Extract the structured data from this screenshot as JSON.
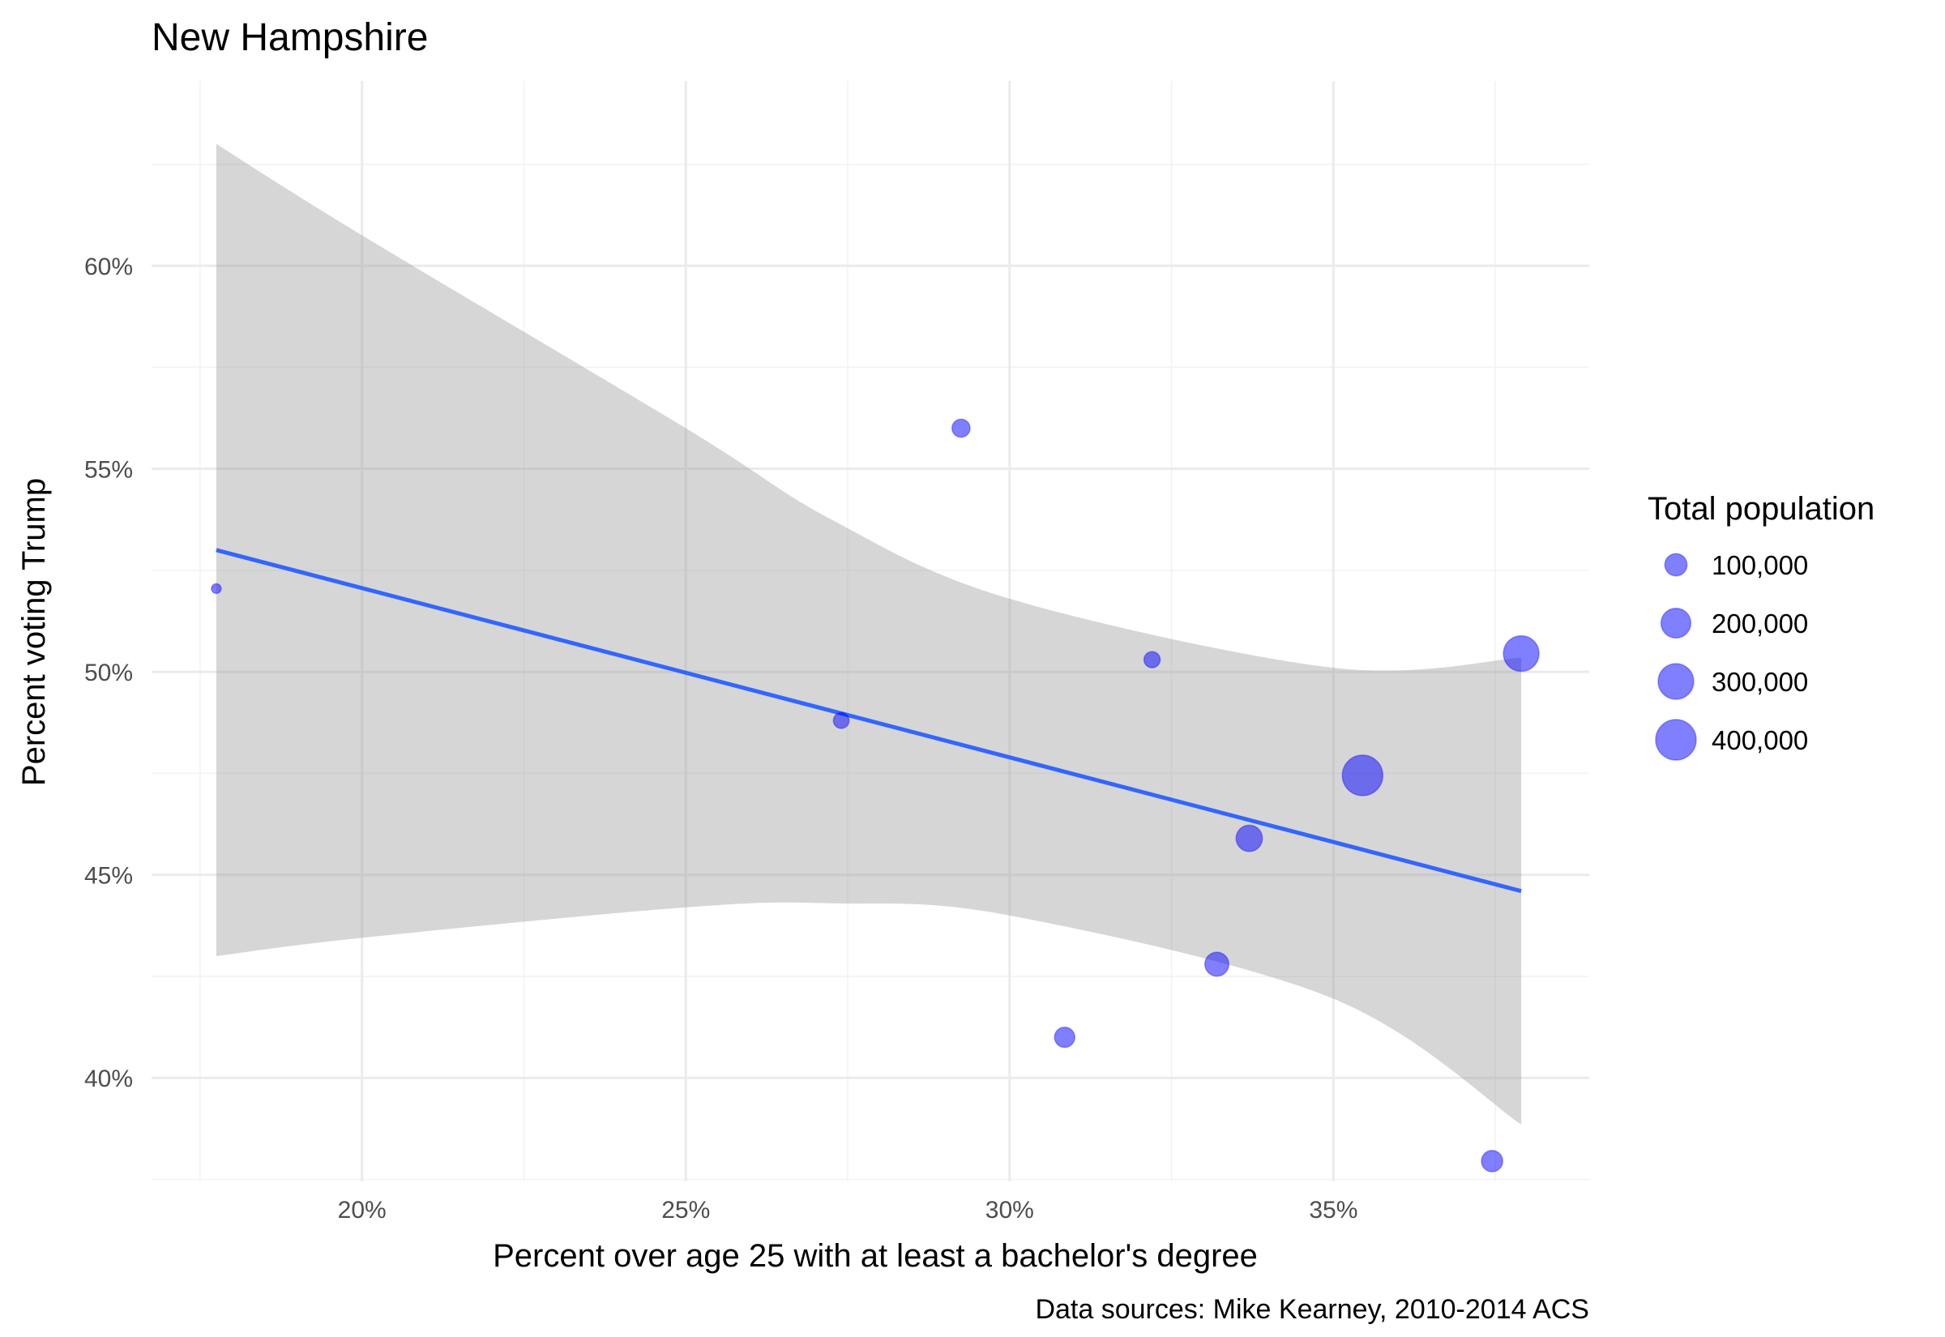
{
  "chart_data": {
    "type": "scatter",
    "title": "New Hampshire",
    "xlabel": "Percent over age 25 with at least a bachelor's degree",
    "ylabel": "Percent voting Trump",
    "caption": "Data sources: Mike Kearney, 2010-2014 ACS",
    "xlim": [
      0.1675,
      0.3895
    ],
    "ylim": [
      0.3745,
      0.6455
    ],
    "x_ticks": [
      0.2,
      0.25,
      0.3,
      0.35
    ],
    "x_tick_labels": [
      "20%",
      "25%",
      "30%",
      "35%"
    ],
    "y_ticks": [
      0.4,
      0.45,
      0.5,
      0.55,
      0.6
    ],
    "y_tick_labels": [
      "40%",
      "45%",
      "50%",
      "55%",
      "60%"
    ],
    "grid": true,
    "point_color": "#0000ff",
    "point_alpha": 0.5,
    "points": [
      {
        "x": 0.1775,
        "y": 0.5205,
        "size": 10000
      },
      {
        "x": 0.274,
        "y": 0.488,
        "size": 42000
      },
      {
        "x": 0.2925,
        "y": 0.56,
        "size": 60000
      },
      {
        "x": 0.3085,
        "y": 0.41,
        "size": 80000
      },
      {
        "x": 0.322,
        "y": 0.503,
        "size": 45000
      },
      {
        "x": 0.332,
        "y": 0.428,
        "size": 120000
      },
      {
        "x": 0.337,
        "y": 0.459,
        "size": 150000
      },
      {
        "x": 0.3545,
        "y": 0.4745,
        "size": 400000
      },
      {
        "x": 0.3745,
        "y": 0.3795,
        "size": 90000
      },
      {
        "x": 0.379,
        "y": 0.5045,
        "size": 300000
      }
    ],
    "smooth": {
      "method": "lm",
      "line_color": "#3366ff",
      "band_color": "#999999",
      "band_alpha": 0.4,
      "x": [
        0.1775,
        0.2,
        0.25,
        0.2725,
        0.3,
        0.35,
        0.379
      ],
      "fit": [
        0.53,
        0.521,
        0.501,
        0.491,
        0.479,
        0.46,
        0.446
      ],
      "lower": [
        0.43,
        0.4345,
        0.442,
        0.443,
        0.44,
        0.4195,
        0.3885
      ],
      "upper": [
        0.63,
        0.6075,
        0.56,
        0.5375,
        0.518,
        0.501,
        0.5035
      ]
    },
    "legend": {
      "title": "Total population",
      "position": "right",
      "entries": [
        {
          "label": "100,000",
          "size": 100000
        },
        {
          "label": "200,000",
          "size": 200000
        },
        {
          "label": "300,000",
          "size": 300000
        },
        {
          "label": "400,000",
          "size": 400000
        }
      ]
    }
  }
}
